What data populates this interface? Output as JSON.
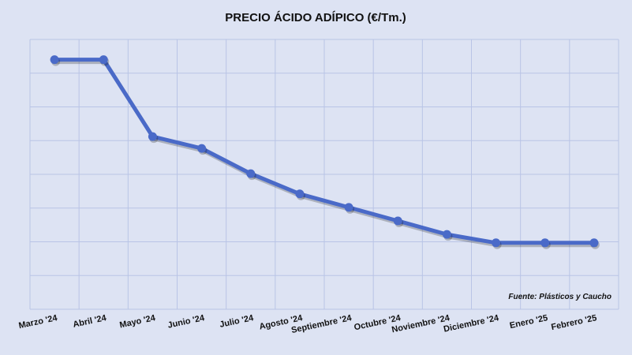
{
  "chart_data": {
    "type": "line",
    "title": "PRECIO ÁCIDO ADÍPICO (€/Tm.)",
    "source": "Fuente: Plásticos y Caucho",
    "categories": [
      "Marzo '24",
      "Abril '24",
      "Mayo '24",
      "Junio '24",
      "Julio '24",
      "Agosto '24",
      "Septiembre '24",
      "Octubre '24",
      "Noviembre '24",
      "Diciembre '24",
      "Enero '25",
      "Febrero '25"
    ],
    "series": [
      {
        "values": [
          6.4,
          6.4,
          4.12,
          3.77,
          3.02,
          2.42,
          2.02,
          1.62,
          1.22,
          0.97,
          0.97,
          0.97
        ]
      }
    ],
    "ylim": [
      -1,
      7
    ],
    "y_gridlines": 8,
    "grid": true,
    "y_tick_labels_shown": false,
    "colors": {
      "background": "#dde3f3",
      "grid": "#b9c4e6",
      "line": "#4a6ac8"
    }
  }
}
